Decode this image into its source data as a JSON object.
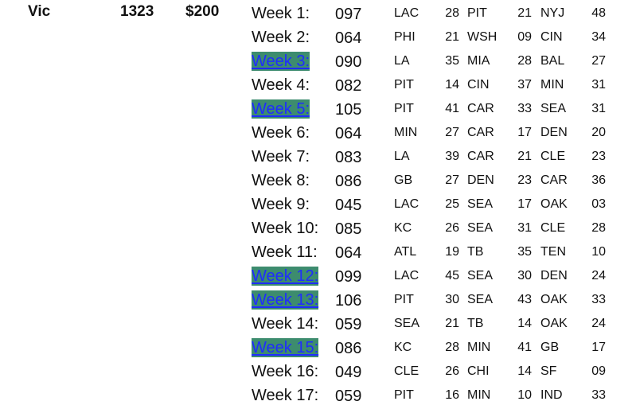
{
  "player": {
    "name": "Vic",
    "total": "1323",
    "winnings": "$200"
  },
  "weeks": [
    {
      "label": "Week 1:",
      "score": "097",
      "highlight": false,
      "picks": [
        [
          "LAC",
          "28"
        ],
        [
          "PIT",
          "21"
        ],
        [
          "NYJ",
          "48"
        ]
      ]
    },
    {
      "label": "Week 2:",
      "score": "064",
      "highlight": false,
      "picks": [
        [
          "PHI",
          "21"
        ],
        [
          "WSH",
          "09"
        ],
        [
          "CIN",
          "34"
        ]
      ]
    },
    {
      "label": "Week 3:",
      "score": "090",
      "highlight": true,
      "picks": [
        [
          "LA",
          "35"
        ],
        [
          "MIA",
          "28"
        ],
        [
          "BAL",
          "27"
        ]
      ]
    },
    {
      "label": "Week 4:",
      "score": "082",
      "highlight": false,
      "picks": [
        [
          "PIT",
          "14"
        ],
        [
          "CIN",
          "37"
        ],
        [
          "MIN",
          "31"
        ]
      ]
    },
    {
      "label": "Week 5:",
      "score": "105",
      "highlight": true,
      "picks": [
        [
          "PIT",
          "41"
        ],
        [
          "CAR",
          "33"
        ],
        [
          "SEA",
          "31"
        ]
      ]
    },
    {
      "label": "Week 6:",
      "score": "064",
      "highlight": false,
      "picks": [
        [
          "MIN",
          "27"
        ],
        [
          "CAR",
          "17"
        ],
        [
          "DEN",
          "20"
        ]
      ]
    },
    {
      "label": "Week 7:",
      "score": "083",
      "highlight": false,
      "picks": [
        [
          "LA",
          "39"
        ],
        [
          "CAR",
          "21"
        ],
        [
          "CLE",
          "23"
        ]
      ]
    },
    {
      "label": "Week 8:",
      "score": "086",
      "highlight": false,
      "picks": [
        [
          "GB",
          "27"
        ],
        [
          "DEN",
          "23"
        ],
        [
          "CAR",
          "36"
        ]
      ]
    },
    {
      "label": "Week 9:",
      "score": "045",
      "highlight": false,
      "picks": [
        [
          "LAC",
          "25"
        ],
        [
          "SEA",
          "17"
        ],
        [
          "OAK",
          "03"
        ]
      ]
    },
    {
      "label": "Week 10:",
      "score": "085",
      "highlight": false,
      "picks": [
        [
          "KC",
          "26"
        ],
        [
          "SEA",
          "31"
        ],
        [
          "CLE",
          "28"
        ]
      ]
    },
    {
      "label": "Week 11:",
      "score": "064",
      "highlight": false,
      "picks": [
        [
          "ATL",
          "19"
        ],
        [
          "TB",
          "35"
        ],
        [
          "TEN",
          "10"
        ]
      ]
    },
    {
      "label": "Week 12:",
      "score": "099",
      "highlight": true,
      "picks": [
        [
          "LAC",
          "45"
        ],
        [
          "SEA",
          "30"
        ],
        [
          "DEN",
          "24"
        ]
      ]
    },
    {
      "label": "Week 13:",
      "score": "106",
      "highlight": true,
      "picks": [
        [
          "PIT",
          "30"
        ],
        [
          "SEA",
          "43"
        ],
        [
          "OAK",
          "33"
        ]
      ]
    },
    {
      "label": "Week 14:",
      "score": "059",
      "highlight": false,
      "picks": [
        [
          "SEA",
          "21"
        ],
        [
          "TB",
          "14"
        ],
        [
          "OAK",
          "24"
        ]
      ]
    },
    {
      "label": "Week 15:",
      "score": "086",
      "highlight": true,
      "picks": [
        [
          "KC",
          "28"
        ],
        [
          "MIN",
          "41"
        ],
        [
          "GB",
          "17"
        ]
      ]
    },
    {
      "label": "Week 16:",
      "score": "049",
      "highlight": false,
      "picks": [
        [
          "CLE",
          "26"
        ],
        [
          "CHI",
          "14"
        ],
        [
          "SF",
          "09"
        ]
      ]
    },
    {
      "label": "Week 17:",
      "score": "059",
      "highlight": false,
      "picks": [
        [
          "PIT",
          "16"
        ],
        [
          "MIN",
          "10"
        ],
        [
          "IND",
          "33"
        ]
      ]
    }
  ]
}
